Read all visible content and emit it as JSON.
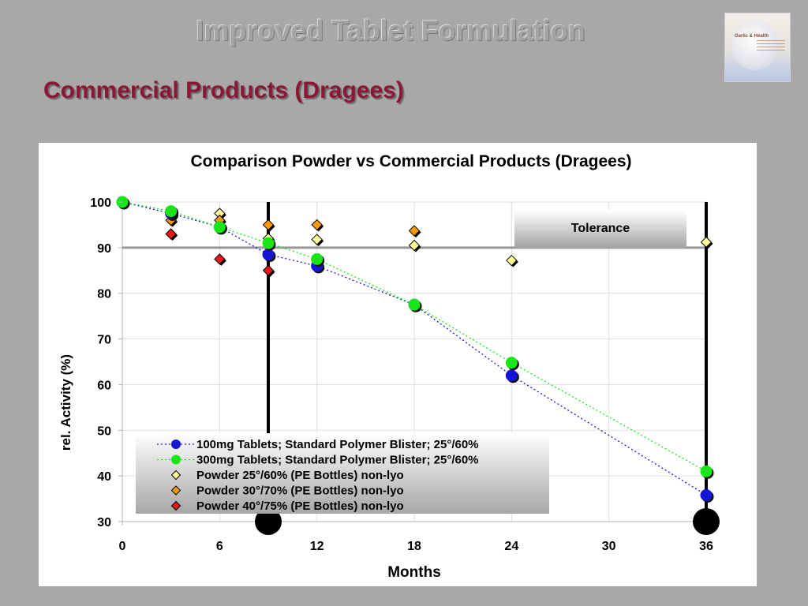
{
  "slide": {
    "title": "Improved Tablet Formulation",
    "subtitle": "Commercial Products (Dragees)",
    "logo_text": "Garlic & Health"
  },
  "chart_data": {
    "type": "scatter",
    "title": "Comparison Powder vs Commercial Products (Dragees)",
    "xlabel": "Months",
    "ylabel": "rel. Activity (%)",
    "xlim": [
      0,
      36
    ],
    "ylim": [
      30,
      100
    ],
    "xticks": [
      0,
      6,
      12,
      18,
      24,
      30,
      36
    ],
    "yticks": [
      30,
      40,
      50,
      60,
      70,
      80,
      90,
      100
    ],
    "grid": true,
    "tolerance_line": 90,
    "tolerance_label": "Tolerance",
    "vertical_markers": [
      9,
      36
    ],
    "legend_position": "bottom-left",
    "series": [
      {
        "name": "100mg Tablets; Standard Polymer Blister; 25°/60%",
        "marker": "circle",
        "color": "#1515d6",
        "trend": "dotted",
        "points": [
          [
            0,
            100
          ],
          [
            3,
            97.5
          ],
          [
            6,
            94.5
          ],
          [
            9,
            88.5
          ],
          [
            12,
            86
          ],
          [
            18,
            77.5
          ],
          [
            24,
            62
          ],
          [
            36,
            35.8
          ]
        ]
      },
      {
        "name": "300mg Tablets; Standard Polymer Blister; 25°/60%",
        "marker": "circle",
        "color": "#19e619",
        "trend": "dotted",
        "points": [
          [
            0,
            100
          ],
          [
            3,
            98
          ],
          [
            6,
            94.5
          ],
          [
            9,
            91
          ],
          [
            12,
            87.5
          ],
          [
            18,
            77.5
          ],
          [
            24,
            64.8
          ],
          [
            36,
            41
          ]
        ]
      },
      {
        "name": "Powder 25°/60%  (PE Bottles) non-lyo",
        "marker": "diamond",
        "color": "#ffff99",
        "points": [
          [
            0,
            100
          ],
          [
            6,
            97.5
          ],
          [
            9,
            92
          ],
          [
            12,
            91.8
          ],
          [
            18,
            90.5
          ],
          [
            24,
            87.2
          ],
          [
            36,
            91.2
          ]
        ]
      },
      {
        "name": "Powder 30°/70%  (PE Bottles) non-lyo",
        "marker": "diamond",
        "color": "#ff9900",
        "points": [
          [
            0,
            100
          ],
          [
            3,
            96
          ],
          [
            6,
            96
          ],
          [
            9,
            95
          ],
          [
            12,
            95
          ],
          [
            18,
            93.7
          ]
        ]
      },
      {
        "name": "Powder 40°/75%  (PE Bottles) non-lyo",
        "marker": "diamond",
        "color": "#e61919",
        "points": [
          [
            0,
            100
          ],
          [
            3,
            93
          ],
          [
            6,
            87.5
          ],
          [
            9,
            85
          ]
        ]
      }
    ]
  }
}
